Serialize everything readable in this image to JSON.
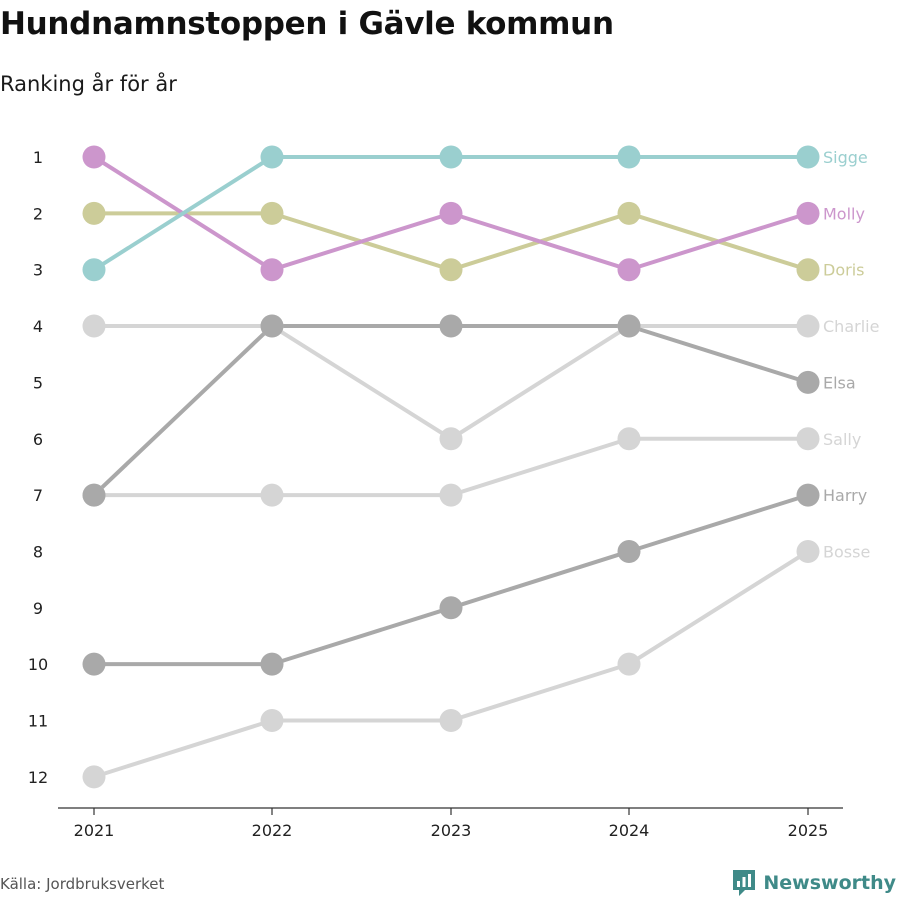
{
  "title": "Hundnamnstoppen i Gävle kommun",
  "subtitle": "Ranking år för år",
  "source": "Källa: Jordbruksverket",
  "brand": "Newsworthy",
  "colors": {
    "teal": "#9acfcf",
    "purple": "#cc96cc",
    "olive": "#cccc99",
    "lightgray": "#d5d5d5",
    "darkgray": "#a9a9a9",
    "axis": "#333333",
    "brand": "#3f8a88"
  },
  "chart_data": {
    "type": "line",
    "title": "Hundnamnstoppen i Gävle kommun",
    "subtitle": "Ranking år för år",
    "x": [
      "2021",
      "2022",
      "2023",
      "2024",
      "2025"
    ],
    "ylim": [
      1,
      12
    ],
    "y_inverted": true,
    "y_ticks": [
      "1",
      "2",
      "3",
      "4",
      "5",
      "6",
      "7",
      "8",
      "9",
      "10",
      "11",
      "12"
    ],
    "series": [
      {
        "name": "Charlie",
        "color": "#d5d5d5",
        "values": [
          4,
          4,
          6,
          4,
          4
        ]
      },
      {
        "name": "Sally",
        "color": "#d5d5d5",
        "values": [
          7,
          7,
          7,
          6,
          6
        ]
      },
      {
        "name": "Bosse",
        "color": "#d5d5d5",
        "values": [
          12,
          11,
          11,
          10,
          8
        ]
      },
      {
        "name": "Elsa",
        "color": "#a9a9a9",
        "values": [
          7,
          4,
          4,
          4,
          5
        ]
      },
      {
        "name": "Harry",
        "color": "#a9a9a9",
        "values": [
          10,
          10,
          9,
          8,
          7
        ]
      },
      {
        "name": "Doris",
        "color": "#cccc99",
        "values": [
          2,
          2,
          3,
          2,
          3
        ]
      },
      {
        "name": "Molly",
        "color": "#cc96cc",
        "values": [
          1,
          3,
          2,
          3,
          2
        ]
      },
      {
        "name": "Sigge",
        "color": "#9acfcf",
        "values": [
          3,
          1,
          1,
          1,
          1
        ]
      }
    ]
  }
}
